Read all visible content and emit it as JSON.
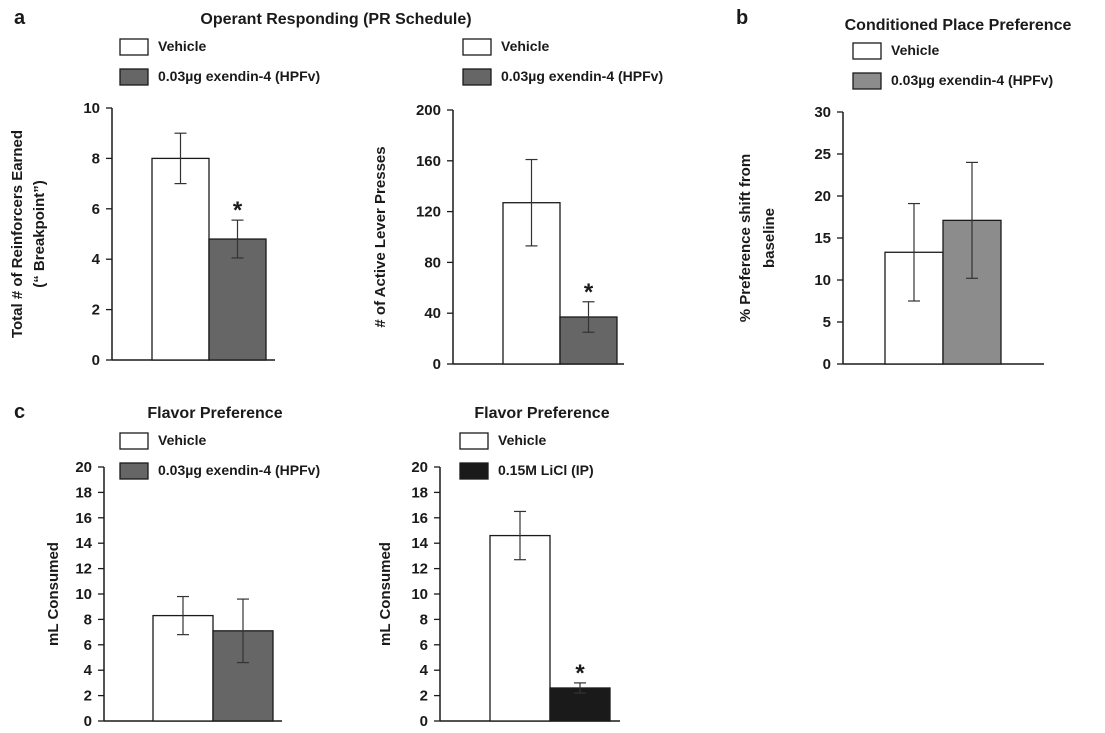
{
  "panel_letters": [
    "a",
    "b",
    "c"
  ],
  "chart_data": [
    {
      "type": "bar",
      "title": "Operant Responding (PR Schedule)",
      "ylabel": "Total # of Reinforcers Earned (“ Breakpoint”)",
      "ylabel_lines": [
        "Total # of Reinforcers Earned",
        "(“ Breakpoint”)"
      ],
      "xlabel": "",
      "ylim": [
        0,
        10
      ],
      "yticks": [
        0,
        2,
        4,
        6,
        8,
        10
      ],
      "legend": [
        "Vehicle",
        "0.03µg exendin-4 (HPFv)"
      ],
      "series": [
        {
          "name": "Vehicle",
          "value": 8.0,
          "error": 1.0,
          "color": "#ffffff"
        },
        {
          "name": "0.03µg exendin-4 (HPFv)",
          "value": 4.8,
          "error": 0.75,
          "color": "#666666",
          "significance": "*"
        }
      ]
    },
    {
      "type": "bar",
      "title": "",
      "ylabel": "# of Active Lever Presses",
      "ylabel_lines": [
        "# of Active Lever Presses"
      ],
      "xlabel": "",
      "ylim": [
        0,
        200
      ],
      "yticks": [
        0,
        40,
        80,
        120,
        160,
        200
      ],
      "legend": [
        "Vehicle",
        "0.03µg exendin-4 (HPFv)"
      ],
      "series": [
        {
          "name": "Vehicle",
          "value": 127,
          "error": 34,
          "color": "#ffffff"
        },
        {
          "name": "0.03µg exendin-4 (HPFv)",
          "value": 37,
          "error": 12,
          "color": "#666666",
          "significance": "*"
        }
      ]
    },
    {
      "type": "bar",
      "title": "Conditioned Place Preference",
      "ylabel": "% Preference shift from baseline",
      "ylabel_lines": [
        "% Preference shift from",
        "baseline"
      ],
      "xlabel": "",
      "ylim": [
        0,
        30
      ],
      "yticks": [
        0,
        5,
        10,
        15,
        20,
        25,
        30
      ],
      "legend": [
        "Vehicle",
        "0.03µg exendin-4 (HPFv)"
      ],
      "series": [
        {
          "name": "Vehicle",
          "value": 13.3,
          "error": 5.8,
          "color": "#ffffff"
        },
        {
          "name": "0.03µg exendin-4 (HPFv)",
          "value": 17.1,
          "error": 6.9,
          "color": "#8c8c8c"
        }
      ]
    },
    {
      "type": "bar",
      "title": "Flavor Preference",
      "ylabel": "mL Consumed",
      "ylabel_lines": [
        "mL Consumed"
      ],
      "xlabel": "",
      "ylim": [
        0,
        20
      ],
      "yticks": [
        0,
        2,
        4,
        6,
        8,
        10,
        12,
        14,
        16,
        18,
        20
      ],
      "legend": [
        "Vehicle",
        "0.03µg exendin-4 (HPFv)"
      ],
      "series": [
        {
          "name": "Vehicle",
          "value": 8.3,
          "error": 1.5,
          "color": "#ffffff"
        },
        {
          "name": "0.03µg exendin-4 (HPFv)",
          "value": 7.1,
          "error": 2.5,
          "color": "#666666"
        }
      ]
    },
    {
      "type": "bar",
      "title": "Flavor Preference",
      "ylabel": "mL Consumed",
      "ylabel_lines": [
        "mL Consumed"
      ],
      "xlabel": "",
      "ylim": [
        0,
        20
      ],
      "yticks": [
        0,
        2,
        4,
        6,
        8,
        10,
        12,
        14,
        16,
        18,
        20
      ],
      "legend": [
        "Vehicle",
        "0.15M LiCl (IP)"
      ],
      "series": [
        {
          "name": "Vehicle",
          "value": 14.6,
          "error": 1.9,
          "color": "#ffffff"
        },
        {
          "name": "0.15M LiCl (IP)",
          "value": 2.6,
          "error": 0.4,
          "color": "#1a1a1a",
          "significance": "*"
        }
      ]
    }
  ]
}
